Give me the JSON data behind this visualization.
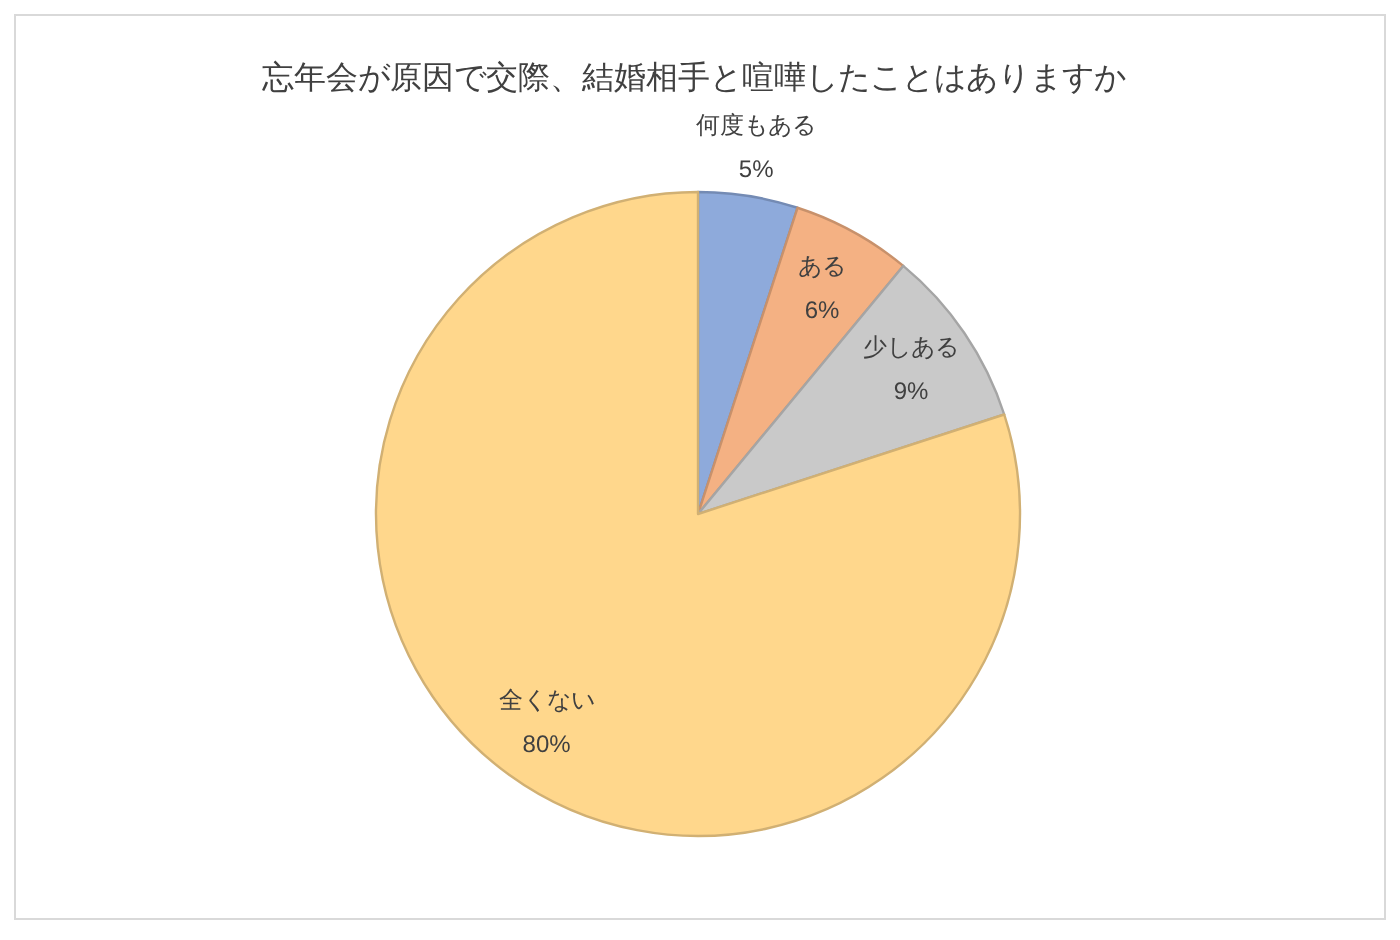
{
  "chart_data": {
    "type": "pie",
    "title": "忘年会が原因で交際、結婚相手と喧嘩したことはありますか",
    "categories": [
      "何度もある",
      "ある",
      "少しある",
      "全くない"
    ],
    "values": [
      5,
      6,
      9,
      80
    ],
    "colors": [
      "#8eaadb",
      "#f4b183",
      "#c9c9c9",
      "#ffd78c"
    ],
    "value_labels": [
      "5%",
      "6%",
      "9%",
      "80%"
    ]
  }
}
